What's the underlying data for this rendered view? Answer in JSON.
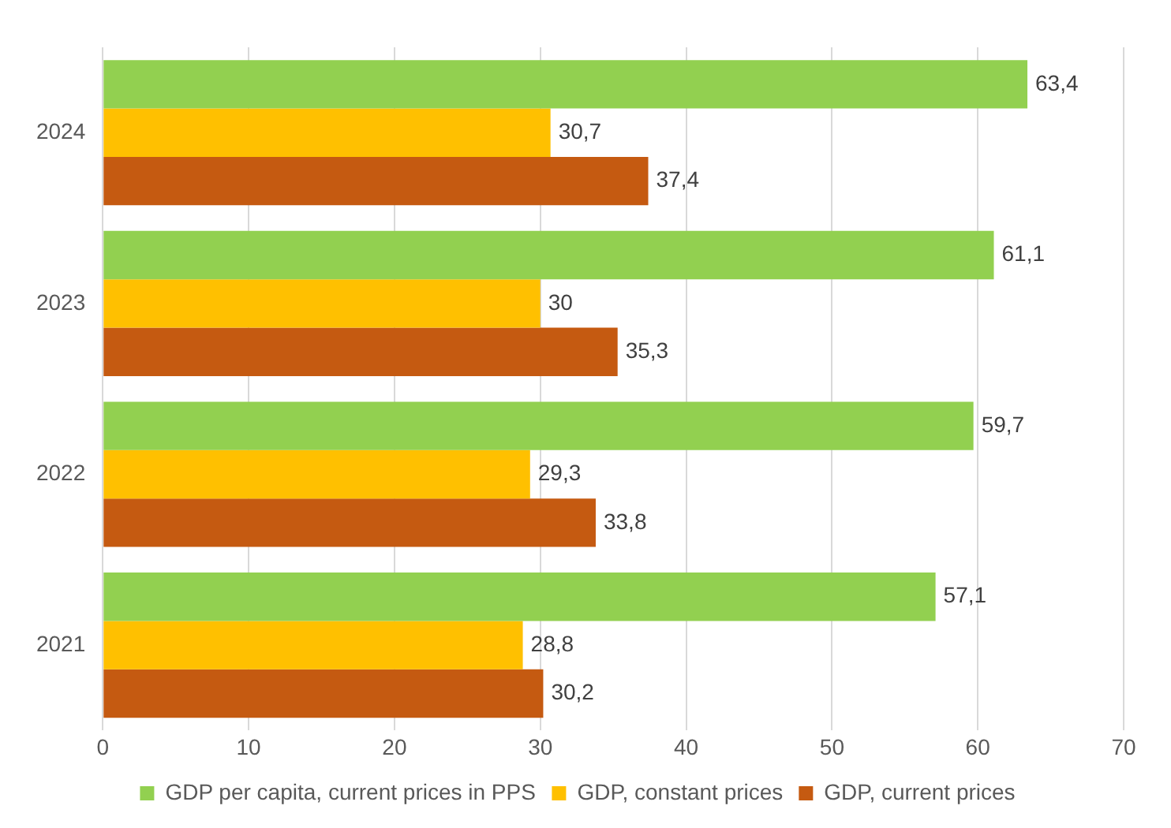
{
  "chart_data": {
    "type": "bar",
    "orientation": "horizontal",
    "categories": [
      "2024",
      "2023",
      "2022",
      "2021"
    ],
    "series": [
      {
        "name": "GDP per capita, current prices in PPS",
        "color": "#92d050",
        "values": [
          63.4,
          61.1,
          59.7,
          57.1
        ],
        "value_labels": [
          "63,4",
          "61,1",
          "59,7",
          "57,1"
        ]
      },
      {
        "name": "GDP, constant prices",
        "color": "#ffc000",
        "values": [
          30.7,
          30,
          29.3,
          28.8
        ],
        "value_labels": [
          "30,7",
          "30",
          "29,3",
          "28,8"
        ]
      },
      {
        "name": "GDP, current prices",
        "color": "#c55a11",
        "values": [
          37.4,
          35.3,
          33.8,
          30.2
        ],
        "value_labels": [
          "37,4",
          "35,3",
          "33,8",
          "30,2"
        ]
      }
    ],
    "xlim": [
      0,
      70
    ],
    "xticks": [
      0,
      10,
      20,
      30,
      40,
      50,
      60,
      70
    ],
    "grid": "x",
    "legend": "bottom"
  }
}
